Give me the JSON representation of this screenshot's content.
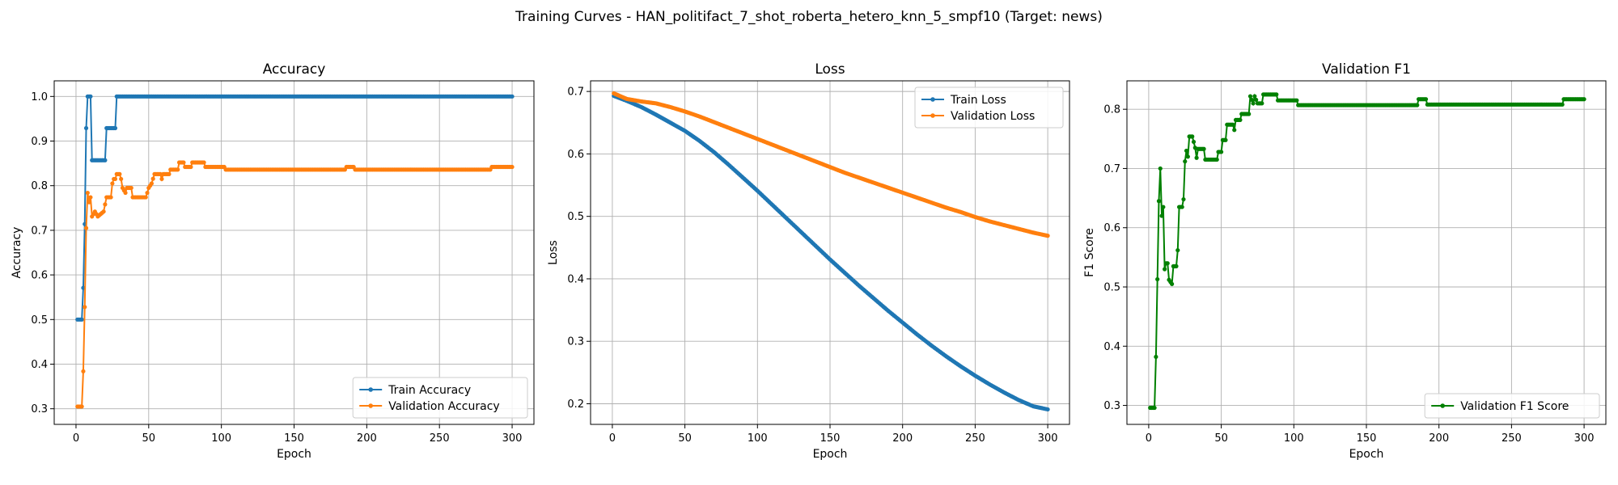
{
  "figure": {
    "suptitle": "Training Curves - HAN_politifact_7_shot_roberta_hetero_knn_5_smpf10 (Target: news)"
  },
  "colors": {
    "train": "#1f77b4",
    "validation": "#ff7f0e",
    "f1": "#008000",
    "grid": "#b0b0b0"
  },
  "chart_data": [
    {
      "type": "line",
      "title": "Accuracy",
      "xlabel": "Epoch",
      "ylabel": "Accuracy",
      "xlim": [
        -15,
        315
      ],
      "ylim": [
        0.265,
        1.035
      ],
      "xticks": [
        0,
        50,
        100,
        150,
        200,
        250,
        300
      ],
      "yticks": [
        0.3,
        0.4,
        0.5,
        0.6,
        0.7,
        0.8,
        0.9,
        1.0
      ],
      "grid": true,
      "legend": "lower-right",
      "series": [
        {
          "name": "Train Accuracy",
          "color": "#1f77b4",
          "breakpoints": [
            [
              1,
              0.5
            ],
            [
              4,
              0.5
            ],
            [
              5,
              0.571
            ],
            [
              6,
              0.714
            ],
            [
              7,
              0.929
            ],
            [
              8,
              1.0
            ],
            [
              10,
              1.0
            ],
            [
              11,
              0.857
            ],
            [
              20,
              0.857
            ],
            [
              21,
              0.929
            ],
            [
              27,
              0.929
            ],
            [
              28,
              1.0
            ],
            [
              300,
              1.0
            ]
          ]
        },
        {
          "name": "Validation Accuracy",
          "color": "#ff7f0e",
          "breakpoints": [
            [
              1,
              0.305
            ],
            [
              4,
              0.305
            ],
            [
              5,
              0.384
            ],
            [
              6,
              0.528
            ],
            [
              7,
              0.705
            ],
            [
              8,
              0.784
            ],
            [
              9,
              0.763
            ],
            [
              10,
              0.774
            ],
            [
              11,
              0.731
            ],
            [
              13,
              0.742
            ],
            [
              15,
              0.731
            ],
            [
              19,
              0.742
            ],
            [
              21,
              0.774
            ],
            [
              24,
              0.774
            ],
            [
              25,
              0.805
            ],
            [
              26,
              0.815
            ],
            [
              27,
              0.815
            ],
            [
              28,
              0.826
            ],
            [
              30,
              0.826
            ],
            [
              31,
              0.815
            ],
            [
              32,
              0.795
            ],
            [
              34,
              0.784
            ],
            [
              35,
              0.795
            ],
            [
              38,
              0.795
            ],
            [
              39,
              0.774
            ],
            [
              48,
              0.774
            ],
            [
              49,
              0.784
            ],
            [
              50,
              0.795
            ],
            [
              52,
              0.805
            ],
            [
              54,
              0.826
            ],
            [
              58,
              0.826
            ],
            [
              59,
              0.815
            ],
            [
              60,
              0.826
            ],
            [
              64,
              0.826
            ],
            [
              65,
              0.836
            ],
            [
              70,
              0.836
            ],
            [
              71,
              0.852
            ],
            [
              74,
              0.852
            ],
            [
              75,
              0.842
            ],
            [
              79,
              0.842
            ],
            [
              80,
              0.852
            ],
            [
              88,
              0.852
            ],
            [
              89,
              0.842
            ],
            [
              102,
              0.842
            ],
            [
              103,
              0.836
            ],
            [
              185,
              0.836
            ],
            [
              186,
              0.842
            ],
            [
              191,
              0.842
            ],
            [
              192,
              0.836
            ],
            [
              285,
              0.836
            ],
            [
              286,
              0.842
            ],
            [
              300,
              0.842
            ]
          ]
        }
      ]
    },
    {
      "type": "line",
      "title": "Loss",
      "xlabel": "Epoch",
      "ylabel": "Loss",
      "xlim": [
        -15,
        315
      ],
      "ylim": [
        0.167,
        0.717
      ],
      "xticks": [
        0,
        50,
        100,
        150,
        200,
        250,
        300
      ],
      "yticks": [
        0.2,
        0.3,
        0.4,
        0.5,
        0.6,
        0.7
      ],
      "grid": true,
      "legend": "top-right",
      "series": [
        {
          "name": "Train Loss",
          "color": "#1f77b4",
          "breakpoints": [
            [
              1,
              0.693
            ],
            [
              10,
              0.685
            ],
            [
              20,
              0.675
            ],
            [
              30,
              0.663
            ],
            [
              40,
              0.65
            ],
            [
              50,
              0.637
            ],
            [
              60,
              0.621
            ],
            [
              70,
              0.603
            ],
            [
              80,
              0.583
            ],
            [
              90,
              0.562
            ],
            [
              100,
              0.541
            ],
            [
              110,
              0.519
            ],
            [
              120,
              0.497
            ],
            [
              130,
              0.475
            ],
            [
              140,
              0.453
            ],
            [
              150,
              0.431
            ],
            [
              160,
              0.41
            ],
            [
              170,
              0.389
            ],
            [
              180,
              0.369
            ],
            [
              190,
              0.349
            ],
            [
              200,
              0.33
            ],
            [
              210,
              0.311
            ],
            [
              220,
              0.293
            ],
            [
              230,
              0.276
            ],
            [
              240,
              0.26
            ],
            [
              250,
              0.245
            ],
            [
              260,
              0.231
            ],
            [
              270,
              0.218
            ],
            [
              280,
              0.206
            ],
            [
              290,
              0.196
            ],
            [
              300,
              0.191
            ]
          ]
        },
        {
          "name": "Validation Loss",
          "color": "#ff7f0e",
          "breakpoints": [
            [
              1,
              0.697
            ],
            [
              10,
              0.688
            ],
            [
              20,
              0.684
            ],
            [
              30,
              0.681
            ],
            [
              40,
              0.675
            ],
            [
              50,
              0.668
            ],
            [
              60,
              0.66
            ],
            [
              70,
              0.651
            ],
            [
              80,
              0.642
            ],
            [
              90,
              0.633
            ],
            [
              100,
              0.624
            ],
            [
              110,
              0.615
            ],
            [
              120,
              0.606
            ],
            [
              130,
              0.597
            ],
            [
              140,
              0.588
            ],
            [
              150,
              0.579
            ],
            [
              160,
              0.57
            ],
            [
              170,
              0.562
            ],
            [
              180,
              0.554
            ],
            [
              190,
              0.546
            ],
            [
              200,
              0.538
            ],
            [
              210,
              0.53
            ],
            [
              220,
              0.522
            ],
            [
              230,
              0.514
            ],
            [
              240,
              0.507
            ],
            [
              250,
              0.499
            ],
            [
              260,
              0.492
            ],
            [
              270,
              0.486
            ],
            [
              280,
              0.48
            ],
            [
              290,
              0.474
            ],
            [
              300,
              0.469
            ]
          ]
        }
      ]
    },
    {
      "type": "line",
      "title": "Validation F1",
      "xlabel": "Epoch",
      "ylabel": "F1 Score",
      "xlim": [
        -15,
        315
      ],
      "ylim": [
        0.268,
        0.848
      ],
      "xticks": [
        0,
        50,
        100,
        150,
        200,
        250,
        300
      ],
      "yticks": [
        0.3,
        0.4,
        0.5,
        0.6,
        0.7,
        0.8
      ],
      "grid": true,
      "legend": "lower-right",
      "series": [
        {
          "name": "Validation F1 Score",
          "color": "#008000",
          "breakpoints": [
            [
              1,
              0.296
            ],
            [
              4,
              0.296
            ],
            [
              5,
              0.382
            ],
            [
              6,
              0.513
            ],
            [
              7,
              0.645
            ],
            [
              8,
              0.7
            ],
            [
              9,
              0.62
            ],
            [
              10,
              0.635
            ],
            [
              11,
              0.53
            ],
            [
              12,
              0.54
            ],
            [
              13,
              0.54
            ],
            [
              14,
              0.512
            ],
            [
              16,
              0.505
            ],
            [
              17,
              0.535
            ],
            [
              19,
              0.535
            ],
            [
              20,
              0.562
            ],
            [
              21,
              0.635
            ],
            [
              23,
              0.635
            ],
            [
              24,
              0.648
            ],
            [
              25,
              0.712
            ],
            [
              26,
              0.73
            ],
            [
              27,
              0.72
            ],
            [
              28,
              0.754
            ],
            [
              30,
              0.754
            ],
            [
              31,
              0.745
            ],
            [
              32,
              0.735
            ],
            [
              33,
              0.718
            ],
            [
              34,
              0.733
            ],
            [
              38,
              0.733
            ],
            [
              39,
              0.715
            ],
            [
              47,
              0.715
            ],
            [
              48,
              0.728
            ],
            [
              50,
              0.728
            ],
            [
              51,
              0.748
            ],
            [
              53,
              0.748
            ],
            [
              54,
              0.774
            ],
            [
              58,
              0.774
            ],
            [
              59,
              0.765
            ],
            [
              60,
              0.782
            ],
            [
              63,
              0.782
            ],
            [
              64,
              0.792
            ],
            [
              69,
              0.792
            ],
            [
              70,
              0.822
            ],
            [
              72,
              0.81
            ],
            [
              73,
              0.822
            ],
            [
              75,
              0.81
            ],
            [
              78,
              0.81
            ],
            [
              79,
              0.825
            ],
            [
              88,
              0.825
            ],
            [
              89,
              0.815
            ],
            [
              102,
              0.815
            ],
            [
              103,
              0.807
            ],
            [
              185,
              0.807
            ],
            [
              186,
              0.817
            ],
            [
              191,
              0.817
            ],
            [
              192,
              0.808
            ],
            [
              285,
              0.808
            ],
            [
              286,
              0.817
            ],
            [
              300,
              0.817
            ]
          ]
        }
      ]
    }
  ]
}
